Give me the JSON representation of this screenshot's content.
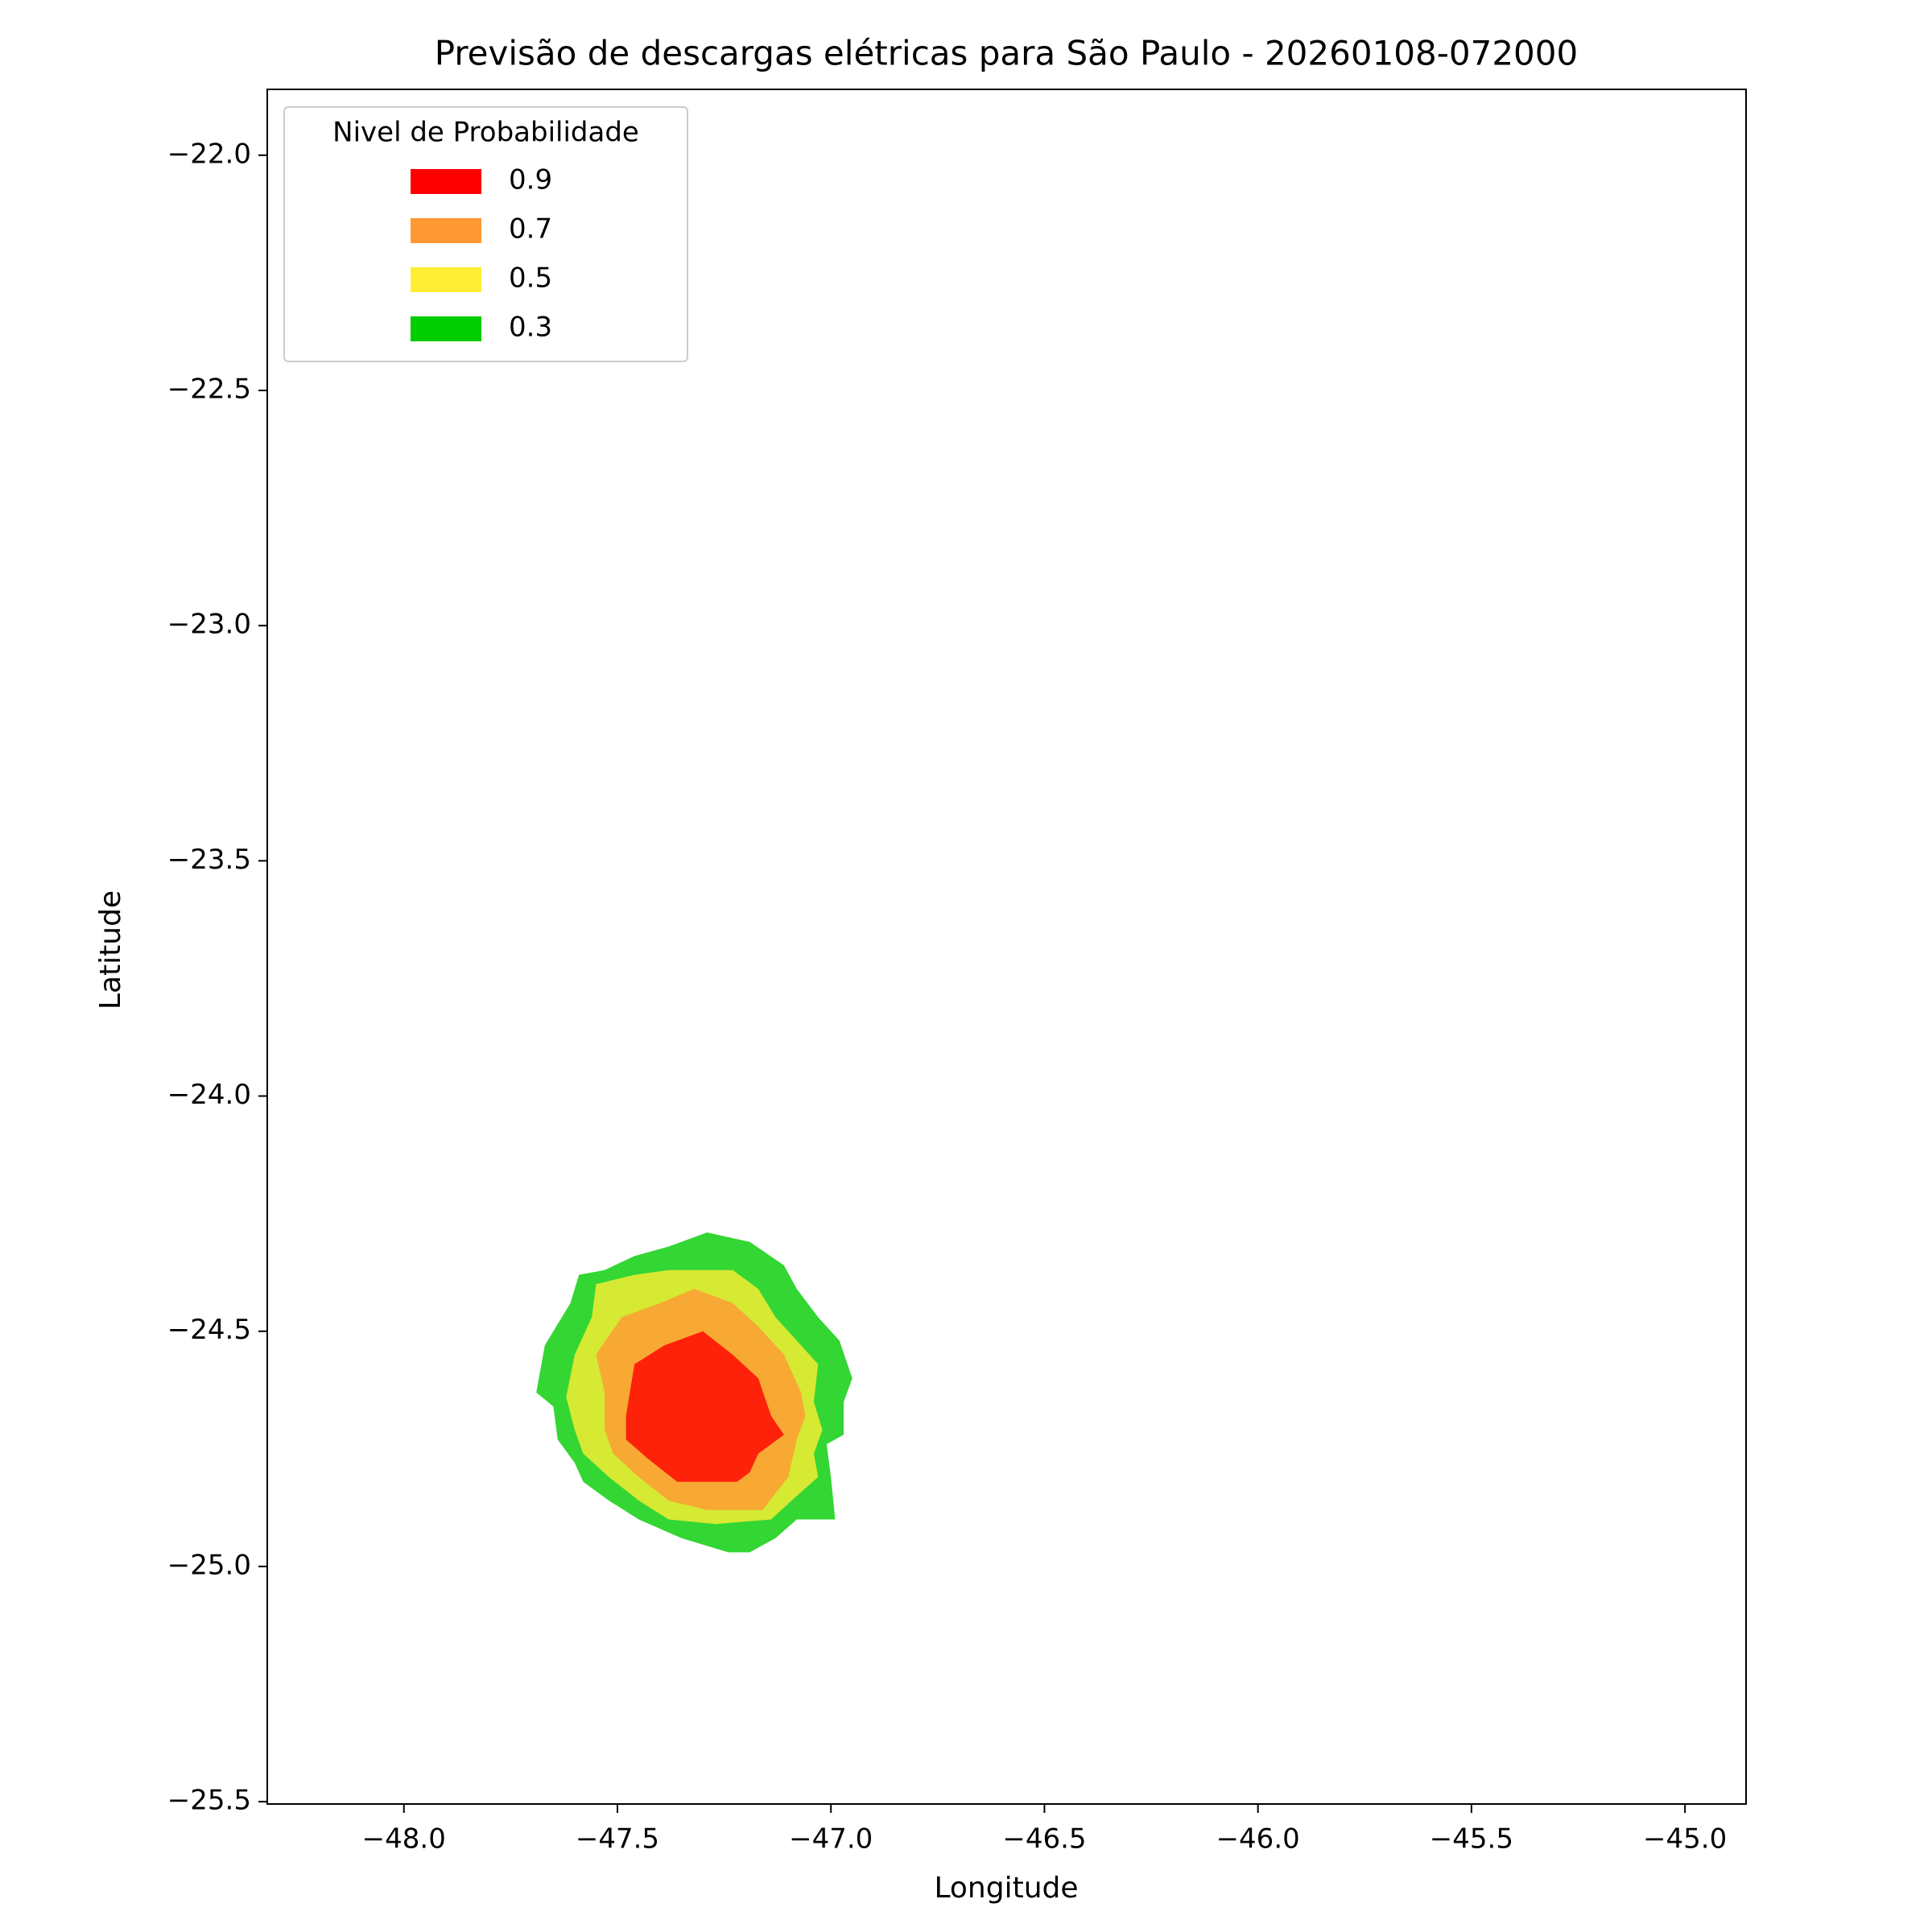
{
  "chart_data": {
    "type": "contour",
    "title": "Previsão de descargas elétricas para São Paulo - 20260108-072000",
    "x_label": "Longitude",
    "y_label": "Latitude",
    "legend_title": "Nivel de Probabilidade",
    "legend_position": "upper left",
    "alpha": 0.8,
    "xlim": [
      -48.32,
      -44.857
    ],
    "ylim": [
      -25.505,
      -21.86
    ],
    "xticks": [
      {
        "value": -48.0,
        "label": "−48.0"
      },
      {
        "value": -47.5,
        "label": "−47.5"
      },
      {
        "value": -47.0,
        "label": "−47.0"
      },
      {
        "value": -46.5,
        "label": "−46.5"
      },
      {
        "value": -46.0,
        "label": "−46.0"
      },
      {
        "value": -45.5,
        "label": "−45.5"
      },
      {
        "value": -45.0,
        "label": "−45.0"
      }
    ],
    "yticks": [
      {
        "value": -22.0,
        "label": "−22.0"
      },
      {
        "value": -22.5,
        "label": "−22.5"
      },
      {
        "value": -23.0,
        "label": "−23.0"
      },
      {
        "value": -23.5,
        "label": "−23.5"
      },
      {
        "value": -24.0,
        "label": "−24.0"
      },
      {
        "value": -24.5,
        "label": "−24.5"
      },
      {
        "value": -25.0,
        "label": "−25.0"
      },
      {
        "value": -25.5,
        "label": "−25.5"
      }
    ],
    "series": [
      {
        "name": "0.9",
        "color": "#ff0000",
        "lon": [
          -47.48,
          -47.46,
          -47.39,
          -47.3,
          -47.23,
          -47.17,
          -47.14,
          -47.11,
          -47.17,
          -47.19,
          -47.22,
          -47.36,
          -47.43,
          -47.48
        ],
        "lat": [
          -24.68,
          -24.57,
          -24.53,
          -24.5,
          -24.55,
          -24.6,
          -24.68,
          -24.72,
          -24.76,
          -24.8,
          -24.82,
          -24.82,
          -24.77,
          -24.73
        ]
      },
      {
        "name": "0.7",
        "color": "#ff9933",
        "lon": [
          -47.53,
          -47.55,
          -47.49,
          -47.4,
          -47.32,
          -47.23,
          -47.17,
          -47.11,
          -47.07,
          -47.06,
          -47.08,
          -47.1,
          -47.16,
          -47.29,
          -47.38,
          -47.45,
          -47.51,
          -47.53
        ],
        "lat": [
          -24.63,
          -24.55,
          -24.47,
          -24.44,
          -24.41,
          -24.44,
          -24.49,
          -24.55,
          -24.63,
          -24.68,
          -24.73,
          -24.81,
          -24.88,
          -24.88,
          -24.86,
          -24.81,
          -24.76,
          -24.71
        ]
      },
      {
        "name": "0.5",
        "color": "#ffee33",
        "lon": [
          -47.62,
          -47.6,
          -47.56,
          -47.55,
          -47.46,
          -47.38,
          -47.23,
          -47.17,
          -47.13,
          -47.08,
          -47.03,
          -47.04,
          -47.02,
          -47.04,
          -47.03,
          -47.08,
          -47.14,
          -47.27,
          -47.38,
          -47.45,
          -47.52,
          -47.58,
          -47.6
        ],
        "lat": [
          -24.64,
          -24.55,
          -24.47,
          -24.4,
          -24.38,
          -24.37,
          -24.37,
          -24.41,
          -24.47,
          -24.52,
          -24.57,
          -24.65,
          -24.71,
          -24.76,
          -24.81,
          -24.85,
          -24.9,
          -24.91,
          -24.9,
          -24.86,
          -24.81,
          -24.76,
          -24.71
        ]
      },
      {
        "name": "0.3",
        "color": "#00cc00",
        "lon": [
          -47.69,
          -47.67,
          -47.61,
          -47.59,
          -47.53,
          -47.46,
          -47.38,
          -47.29,
          -47.19,
          -47.11,
          -47.08,
          -47.03,
          -46.98,
          -46.95,
          -46.97,
          -46.97,
          -47.01,
          -47.0,
          -46.99,
          -47.08,
          -47.13,
          -47.19,
          -47.24,
          -47.35,
          -47.45,
          -47.52,
          -47.58,
          -47.6,
          -47.64,
          -47.65
        ],
        "lat": [
          -24.63,
          -24.53,
          -24.44,
          -24.38,
          -24.37,
          -24.34,
          -24.32,
          -24.29,
          -24.31,
          -24.36,
          -24.41,
          -24.47,
          -24.52,
          -24.6,
          -24.65,
          -24.72,
          -24.74,
          -24.81,
          -24.9,
          -24.9,
          -24.94,
          -24.97,
          -24.97,
          -24.94,
          -24.9,
          -24.86,
          -24.82,
          -24.78,
          -24.73,
          -24.66
        ]
      }
    ]
  }
}
